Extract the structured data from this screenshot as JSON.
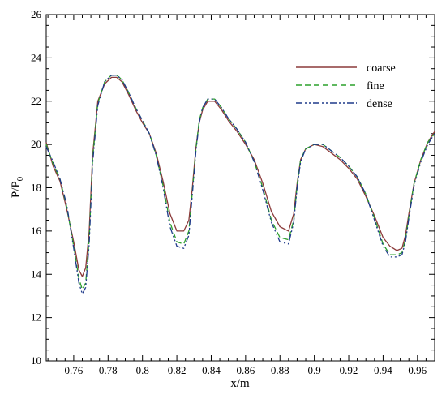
{
  "chart_data": {
    "type": "line",
    "xlabel": "x/m",
    "ylabel_main": "P/P",
    "ylabel_sub": "0",
    "xlim": [
      0.744,
      0.97
    ],
    "ylim": [
      10,
      26
    ],
    "xticks": [
      0.76,
      0.78,
      0.8,
      0.82,
      0.84,
      0.86,
      0.88,
      0.9,
      0.92,
      0.94,
      0.96
    ],
    "xtick_labels": [
      "0.76",
      "0.78",
      "0.8",
      "0.82",
      "0.84",
      "0.86",
      "0.88",
      "0.9",
      "0.92",
      "0.94",
      "0.96"
    ],
    "yticks": [
      10,
      12,
      14,
      16,
      18,
      20,
      22,
      24,
      26
    ],
    "ytick_labels": [
      "10",
      "12",
      "14",
      "16",
      "18",
      "20",
      "22",
      "24",
      "26"
    ],
    "legend_position": "top-right",
    "grid": false,
    "series": [
      {
        "name": "coarse",
        "color": "#8b3a3a",
        "dash": "solid",
        "x": [
          0.744,
          0.748,
          0.752,
          0.756,
          0.76,
          0.763,
          0.765,
          0.767,
          0.769,
          0.771,
          0.774,
          0.778,
          0.782,
          0.785,
          0.788,
          0.792,
          0.796,
          0.8,
          0.804,
          0.808,
          0.812,
          0.816,
          0.82,
          0.824,
          0.827,
          0.829,
          0.831,
          0.833,
          0.835,
          0.838,
          0.842,
          0.846,
          0.85,
          0.855,
          0.86,
          0.865,
          0.87,
          0.875,
          0.88,
          0.885,
          0.888,
          0.89,
          0.892,
          0.895,
          0.9,
          0.905,
          0.91,
          0.915,
          0.92,
          0.925,
          0.93,
          0.935,
          0.94,
          0.944,
          0.948,
          0.951,
          0.953,
          0.955,
          0.958,
          0.962,
          0.966,
          0.97
        ],
        "y": [
          20.1,
          19.0,
          18.3,
          17.0,
          15.5,
          14.2,
          13.9,
          14.3,
          16.0,
          19.5,
          22.0,
          22.8,
          23.1,
          23.1,
          22.9,
          22.3,
          21.6,
          21.0,
          20.5,
          19.6,
          18.3,
          16.8,
          16.0,
          16.0,
          16.5,
          18.0,
          19.8,
          21.0,
          21.6,
          22.0,
          22.0,
          21.6,
          21.1,
          20.6,
          20.0,
          19.3,
          18.2,
          16.9,
          16.2,
          16.0,
          16.8,
          18.2,
          19.3,
          19.8,
          20.0,
          19.9,
          19.6,
          19.3,
          18.9,
          18.4,
          17.6,
          16.7,
          15.7,
          15.3,
          15.1,
          15.2,
          15.8,
          16.8,
          18.2,
          19.3,
          20.1,
          20.6
        ]
      },
      {
        "name": "fine",
        "color": "#2ca02c",
        "dash": "dashed",
        "x": [
          0.744,
          0.748,
          0.752,
          0.756,
          0.76,
          0.763,
          0.765,
          0.767,
          0.769,
          0.771,
          0.774,
          0.778,
          0.782,
          0.785,
          0.788,
          0.792,
          0.796,
          0.8,
          0.804,
          0.808,
          0.812,
          0.816,
          0.82,
          0.824,
          0.827,
          0.829,
          0.831,
          0.833,
          0.835,
          0.838,
          0.842,
          0.846,
          0.85,
          0.855,
          0.86,
          0.865,
          0.87,
          0.875,
          0.88,
          0.885,
          0.888,
          0.89,
          0.892,
          0.895,
          0.9,
          0.905,
          0.91,
          0.915,
          0.92,
          0.925,
          0.93,
          0.935,
          0.94,
          0.944,
          0.948,
          0.951,
          0.953,
          0.955,
          0.958,
          0.962,
          0.966,
          0.97
        ],
        "y": [
          20.0,
          19.1,
          18.4,
          17.1,
          15.3,
          13.8,
          13.3,
          13.6,
          15.6,
          19.3,
          21.9,
          22.9,
          23.2,
          23.2,
          23.0,
          22.4,
          21.7,
          21.1,
          20.5,
          19.5,
          18.1,
          16.4,
          15.5,
          15.4,
          16.0,
          17.8,
          19.7,
          21.1,
          21.7,
          22.1,
          22.1,
          21.7,
          21.2,
          20.7,
          20.1,
          19.2,
          18.0,
          16.5,
          15.7,
          15.6,
          16.5,
          18.1,
          19.3,
          19.8,
          20.0,
          20.0,
          19.7,
          19.4,
          19.0,
          18.5,
          17.7,
          16.6,
          15.4,
          14.9,
          14.9,
          15.0,
          15.6,
          16.7,
          18.2,
          19.3,
          20.1,
          20.5
        ]
      },
      {
        "name": "dense",
        "color": "#1f3a8a",
        "dash": "dash-dot-dot",
        "x": [
          0.744,
          0.748,
          0.752,
          0.756,
          0.76,
          0.763,
          0.765,
          0.767,
          0.769,
          0.771,
          0.774,
          0.778,
          0.782,
          0.785,
          0.788,
          0.792,
          0.796,
          0.8,
          0.804,
          0.808,
          0.812,
          0.816,
          0.82,
          0.824,
          0.827,
          0.829,
          0.831,
          0.833,
          0.835,
          0.838,
          0.842,
          0.846,
          0.85,
          0.855,
          0.86,
          0.865,
          0.87,
          0.875,
          0.88,
          0.885,
          0.888,
          0.89,
          0.892,
          0.895,
          0.9,
          0.905,
          0.91,
          0.915,
          0.92,
          0.925,
          0.93,
          0.935,
          0.94,
          0.944,
          0.948,
          0.951,
          0.953,
          0.955,
          0.958,
          0.962,
          0.966,
          0.97
        ],
        "y": [
          19.9,
          19.2,
          18.4,
          17.2,
          15.2,
          13.6,
          13.1,
          13.4,
          15.4,
          19.1,
          21.8,
          22.9,
          23.2,
          23.2,
          23.0,
          22.4,
          21.7,
          21.1,
          20.5,
          19.5,
          18.0,
          16.2,
          15.3,
          15.2,
          15.8,
          17.7,
          19.6,
          21.0,
          21.7,
          22.1,
          22.1,
          21.7,
          21.2,
          20.7,
          20.1,
          19.2,
          17.9,
          16.4,
          15.5,
          15.4,
          16.4,
          18.0,
          19.2,
          19.8,
          20.0,
          20.0,
          19.7,
          19.4,
          19.0,
          18.5,
          17.7,
          16.5,
          15.3,
          14.8,
          14.8,
          14.9,
          15.5,
          16.6,
          18.1,
          19.2,
          20.0,
          20.5
        ]
      }
    ]
  }
}
